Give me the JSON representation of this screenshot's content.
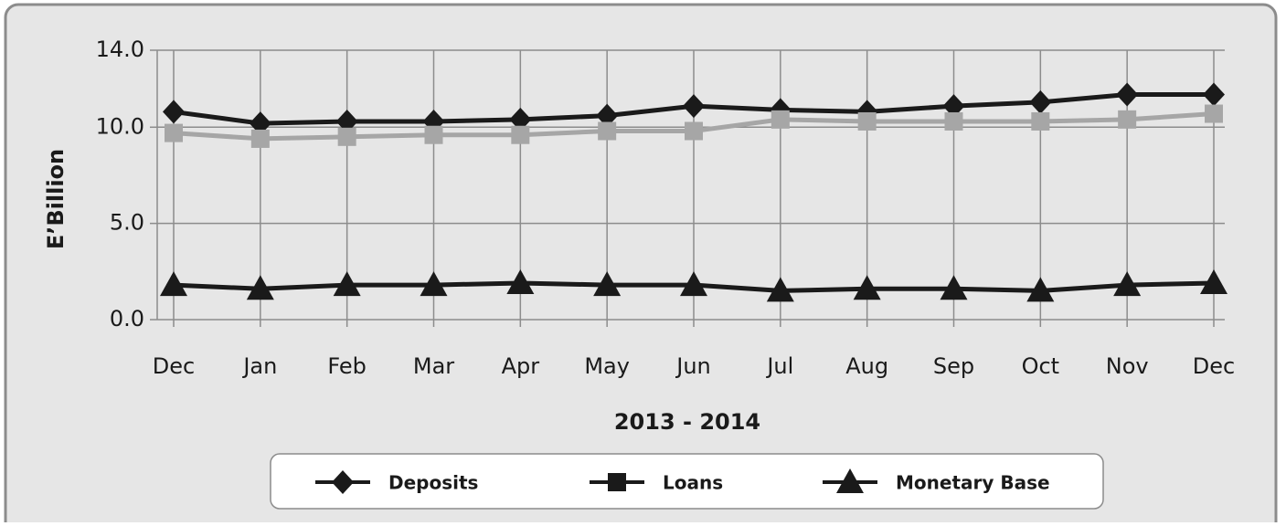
{
  "chart_data": {
    "type": "line",
    "y_label": "E’Billion",
    "x_label": "2013 - 2014",
    "categories": [
      "Dec",
      "Jan",
      "Feb",
      "Mar",
      "Apr",
      "May",
      "Jun",
      "Jul",
      "Aug",
      "Sep",
      "Oct",
      "Nov",
      "Dec"
    ],
    "series": [
      {
        "name": "Deposits",
        "color": "#1a1a1a",
        "marker": "diamond",
        "values": [
          10.8,
          10.2,
          10.3,
          10.3,
          10.4,
          10.6,
          11.1,
          10.9,
          10.8,
          11.1,
          11.3,
          11.7,
          11.7
        ]
      },
      {
        "name": "Loans",
        "color": "#a6a6a6",
        "marker": "square",
        "values": [
          9.7,
          9.4,
          9.5,
          9.6,
          9.6,
          9.8,
          9.8,
          10.4,
          10.3,
          10.3,
          10.3,
          10.4,
          10.7
        ]
      },
      {
        "name": "Monetary Base",
        "color": "#1a1a1a",
        "marker": "triangle",
        "values": [
          1.8,
          1.6,
          1.8,
          1.8,
          1.9,
          1.8,
          1.8,
          1.5,
          1.6,
          1.6,
          1.5,
          1.8,
          1.9
        ]
      }
    ],
    "ylim": [
      0,
      14
    ],
    "yticks": [
      {
        "value": 0,
        "label": "0.0"
      },
      {
        "value": 5,
        "label": "5.0"
      },
      {
        "value": 10,
        "label": "10.0"
      },
      {
        "value": 14,
        "label": "14.0"
      }
    ],
    "grid": true,
    "legend": "bottom"
  }
}
